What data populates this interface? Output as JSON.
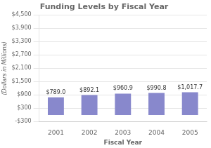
{
  "chart_data": {
    "type": "bar",
    "title": "Funding Levels by Fiscal Year",
    "xlabel": "Fiscal Year",
    "ylabel": "(Dollars in Millions)",
    "categories": [
      "2001",
      "2002",
      "2003",
      "2004",
      "2005"
    ],
    "values": [
      789.0,
      892.1,
      960.9,
      990.8,
      1017.7
    ],
    "value_labels": [
      "$789.0",
      "$892.1",
      "$960.9",
      "$990.8",
      "$1,017.7"
    ],
    "data_labels": true,
    "color": "#8888cc",
    "ylim": [
      -300,
      4500
    ],
    "yticks": [
      {
        "value": -300,
        "label": "-$300"
      },
      {
        "value": 300,
        "label": "$300"
      },
      {
        "value": 900,
        "label": "$900"
      },
      {
        "value": 1500,
        "label": "$1,500"
      },
      {
        "value": 2100,
        "label": "$2,100"
      },
      {
        "value": 2700,
        "label": "$2,700"
      },
      {
        "value": 3300,
        "label": "$3,300"
      },
      {
        "value": 3900,
        "label": "$3,900"
      },
      {
        "value": 4500,
        "label": "$4,500"
      }
    ],
    "grid": true
  }
}
